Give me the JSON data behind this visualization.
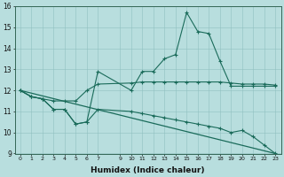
{
  "xlabel": "Humidex (Indice chaleur)",
  "bg_color": "#b8dede",
  "line_color": "#1a6b5a",
  "ylim": [
    9,
    16
  ],
  "xlim": [
    -0.5,
    23.5
  ],
  "yticks": [
    9,
    10,
    11,
    12,
    13,
    14,
    15,
    16
  ],
  "xticks": [
    0,
    1,
    2,
    3,
    4,
    5,
    6,
    7,
    9,
    10,
    11,
    12,
    13,
    14,
    15,
    16,
    17,
    18,
    19,
    20,
    21,
    22,
    23
  ],
  "series": [
    {
      "x": [
        0,
        1,
        2,
        3,
        4,
        5,
        6,
        7,
        10,
        11,
        12,
        13,
        14,
        15,
        16,
        17,
        18,
        19,
        20,
        21,
        22,
        23
      ],
      "y": [
        12.0,
        11.7,
        11.6,
        11.1,
        11.1,
        10.4,
        10.5,
        12.9,
        12.0,
        12.9,
        12.9,
        13.5,
        13.7,
        15.7,
        14.8,
        14.7,
        13.4,
        12.2,
        12.2,
        12.2,
        12.2,
        12.2
      ]
    },
    {
      "x": [
        0,
        1,
        2,
        3,
        4,
        5,
        6,
        7,
        10,
        11,
        12,
        13,
        14,
        15,
        16,
        17,
        18,
        19,
        20,
        21,
        22,
        23
      ],
      "y": [
        12.0,
        11.7,
        11.6,
        11.1,
        11.1,
        10.4,
        10.5,
        11.1,
        11.0,
        10.9,
        10.8,
        10.7,
        10.6,
        10.5,
        10.4,
        10.3,
        10.2,
        10.0,
        10.1,
        9.8,
        9.4,
        9.0
      ]
    },
    {
      "x": [
        0,
        1,
        2,
        3,
        4,
        5,
        6,
        7,
        10,
        11,
        12,
        13,
        14,
        15,
        16,
        17,
        18,
        19,
        20,
        21,
        22,
        23
      ],
      "y": [
        12.0,
        11.7,
        11.6,
        11.5,
        11.5,
        11.5,
        12.0,
        12.3,
        12.35,
        12.4,
        12.4,
        12.4,
        12.4,
        12.4,
        12.4,
        12.4,
        12.4,
        12.35,
        12.3,
        12.3,
        12.3,
        12.25
      ]
    },
    {
      "x": [
        0,
        23
      ],
      "y": [
        12.0,
        9.0
      ]
    }
  ]
}
